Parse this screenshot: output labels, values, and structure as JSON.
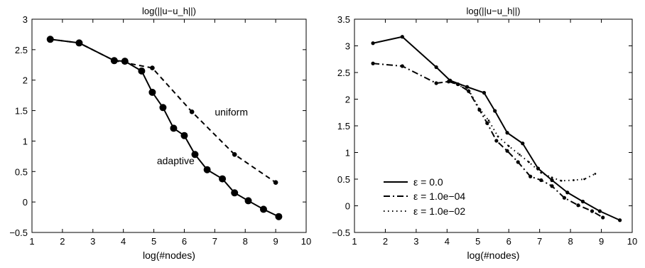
{
  "chart_data": [
    {
      "type": "line",
      "title": "log(||u−u_h||)",
      "xlabel": "log(#nodes)",
      "ylabel": "",
      "xlim": [
        1,
        10
      ],
      "ylim": [
        -0.5,
        3
      ],
      "xticks": [
        "1",
        "2",
        "3",
        "4",
        "5",
        "6",
        "7",
        "8",
        "9",
        "10"
      ],
      "yticks": [
        "−0.5",
        "0",
        "0.5",
        "1",
        "1.5",
        "2",
        "2.5",
        "3"
      ],
      "grid": false,
      "annotations": [
        {
          "text": "uniform",
          "x": 7.0,
          "y": 1.48
        },
        {
          "text": "adaptive",
          "x": 5.1,
          "y": 0.68
        }
      ],
      "series": [
        {
          "name": "adaptive",
          "style": "solid",
          "x": [
            1.6,
            2.55,
            3.7,
            4.05,
            4.6,
            4.95,
            5.3,
            5.65,
            6.0,
            6.35,
            6.75,
            7.25,
            7.65,
            8.1,
            8.6,
            9.1
          ],
          "y": [
            2.67,
            2.61,
            2.32,
            2.31,
            2.15,
            1.8,
            1.55,
            1.21,
            1.09,
            0.78,
            0.53,
            0.38,
            0.15,
            0.02,
            -0.12,
            -0.24
          ]
        },
        {
          "name": "uniform",
          "style": "dashed",
          "x": [
            1.6,
            2.55,
            3.7,
            4.95,
            6.25,
            7.65,
            9.0
          ],
          "y": [
            2.67,
            2.61,
            2.32,
            2.2,
            1.48,
            0.78,
            0.32
          ]
        }
      ]
    },
    {
      "type": "line",
      "title": "log(||u−u_h||)",
      "xlabel": "log(#nodes)",
      "ylabel": "",
      "xlim": [
        1,
        10
      ],
      "ylim": [
        -0.5,
        3.5
      ],
      "xticks": [
        "1",
        "2",
        "3",
        "4",
        "5",
        "6",
        "7",
        "8",
        "9",
        "10"
      ],
      "yticks": [
        "−0.5",
        "0",
        "0.5",
        "1",
        "1.5",
        "2",
        "2.5",
        "3",
        "3.5"
      ],
      "grid": false,
      "legend_position": "bottom-left",
      "series": [
        {
          "name": "ε = 0.0",
          "style": "solid",
          "x": [
            1.6,
            2.55,
            3.65,
            4.1,
            4.65,
            5.2,
            5.55,
            5.95,
            6.45,
            6.95,
            7.4,
            7.9,
            8.4,
            8.95,
            9.6
          ],
          "y": [
            3.05,
            3.17,
            2.6,
            2.35,
            2.23,
            2.12,
            1.78,
            1.37,
            1.17,
            0.7,
            0.48,
            0.25,
            0.08,
            -0.1,
            -0.27
          ]
        },
        {
          "name": "ε = 1.0e−04",
          "style": "dashdot",
          "x": [
            1.6,
            2.55,
            3.65,
            4.05,
            4.35,
            4.7,
            5.05,
            5.3,
            5.6,
            5.95,
            6.3,
            6.7,
            7.05,
            7.4,
            7.8,
            8.25,
            8.7,
            9.05
          ],
          "y": [
            2.67,
            2.62,
            2.3,
            2.33,
            2.28,
            2.15,
            1.8,
            1.55,
            1.22,
            1.03,
            0.82,
            0.55,
            0.48,
            0.37,
            0.15,
            0.01,
            -0.1,
            -0.22
          ]
        },
        {
          "name": "ε = 1.0e−02",
          "style": "dotted",
          "x": [
            4.05,
            4.35,
            4.7,
            5.05,
            5.35,
            5.65,
            6.0,
            6.35,
            6.65,
            7.05,
            7.4,
            7.7,
            8.1,
            8.45,
            8.8
          ],
          "y": [
            2.33,
            2.27,
            2.17,
            1.82,
            1.6,
            1.3,
            1.12,
            0.96,
            0.82,
            0.62,
            0.53,
            0.47,
            0.48,
            0.5,
            0.6
          ]
        }
      ]
    }
  ]
}
